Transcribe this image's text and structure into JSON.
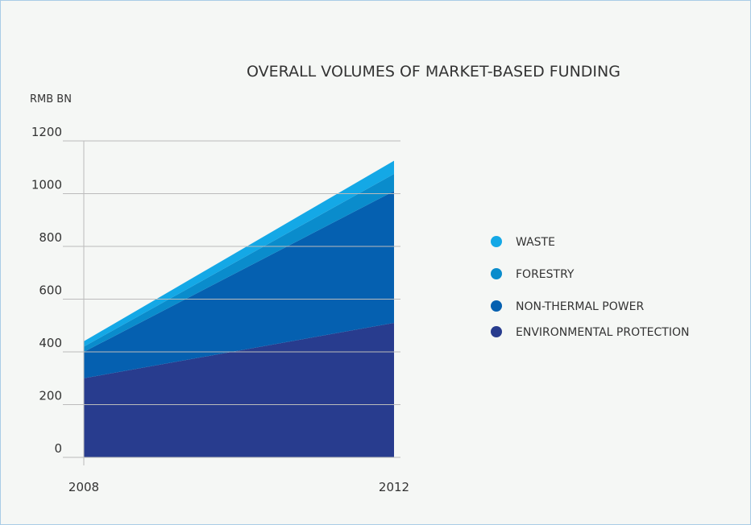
{
  "chart_data": {
    "type": "area",
    "title": "OVERALL VOLUMES OF MARKET-BASED FUNDING",
    "y_label": "RMB BN",
    "categories": [
      "2008",
      "2012"
    ],
    "series": [
      {
        "name": "ENVIRONMENTAL PROTECTION",
        "color": "#283c8e",
        "values": [
          300,
          510
        ]
      },
      {
        "name": "NON-THERMAL POWER",
        "color": "#0560b0",
        "values": [
          100,
          500
        ]
      },
      {
        "name": "FORESTRY",
        "color": "#0a8ccc",
        "values": [
          20,
          65
        ]
      },
      {
        "name": "WASTE",
        "color": "#14a8e6",
        "values": [
          20,
          50
        ]
      }
    ],
    "stacked": true,
    "ylim": [
      0,
      1200
    ],
    "yticks": [
      0,
      200,
      400,
      600,
      800,
      1000,
      1200
    ],
    "grid": true,
    "legend": "right"
  }
}
